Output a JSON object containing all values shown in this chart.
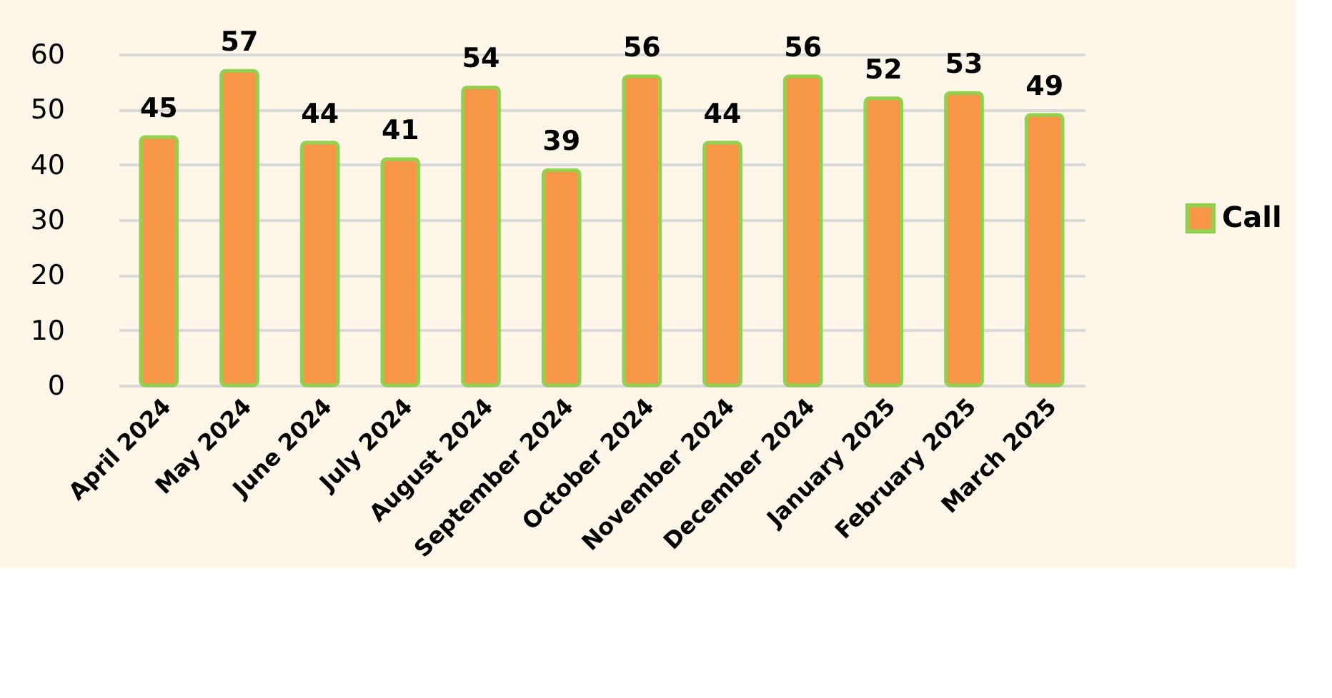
{
  "chart_data": {
    "type": "bar",
    "categories": [
      "April 2024",
      "May 2024",
      "June 2024",
      "July 2024",
      "August 2024",
      "September 2024",
      "October 2024",
      "November 2024",
      "December 2024",
      "January 2025",
      "February 2025",
      "March 2025"
    ],
    "series": [
      {
        "name": "Call",
        "color": "#f79646",
        "values": [
          45,
          57,
          44,
          41,
          54,
          39,
          56,
          44,
          56,
          52,
          53,
          49
        ]
      }
    ],
    "ylim": [
      0,
      60
    ],
    "yticks": [
      0,
      10,
      20,
      30,
      40,
      50,
      60
    ],
    "grid": "y",
    "legend": "right",
    "data_labels": true
  }
}
